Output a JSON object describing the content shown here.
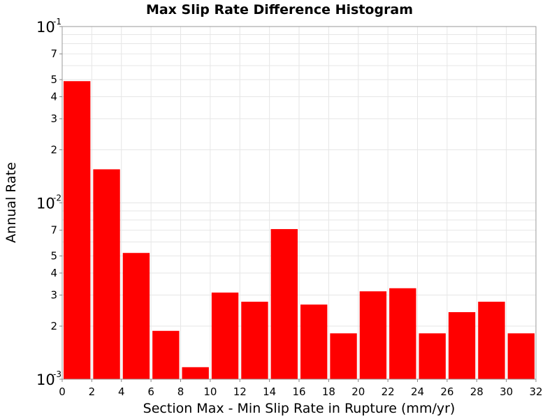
{
  "chart_data": {
    "type": "bar",
    "title": "Max Slip Rate Difference Histogram",
    "xlabel": "Section Max - Min Slip Rate in Rupture (mm/yr)",
    "ylabel": "Annual Rate",
    "y_scale": "log",
    "xlim": [
      0,
      32
    ],
    "ylim": [
      0.001,
      0.1
    ],
    "bar_color": "#ff0000",
    "grid": true,
    "bin_width": 2,
    "x_ticks": [
      "0",
      "2",
      "4",
      "6",
      "8",
      "10",
      "12",
      "14",
      "16",
      "18",
      "20",
      "22",
      "24",
      "26",
      "28",
      "30",
      "32"
    ],
    "y_minor_ticks": [
      {
        "value": 0.002,
        "label": "2"
      },
      {
        "value": 0.003,
        "label": "3"
      },
      {
        "value": 0.004,
        "label": "4"
      },
      {
        "value": 0.005,
        "label": "5"
      },
      {
        "value": 0.007,
        "label": "7"
      },
      {
        "value": 0.02,
        "label": "2"
      },
      {
        "value": 0.03,
        "label": "3"
      },
      {
        "value": 0.04,
        "label": "4"
      },
      {
        "value": 0.05,
        "label": "5"
      },
      {
        "value": 0.07,
        "label": "7"
      }
    ],
    "y_major_ticks": [
      {
        "value": 0.001,
        "base": "10",
        "exp": "-3"
      },
      {
        "value": 0.01,
        "base": "10",
        "exp": "-2"
      },
      {
        "value": 0.1,
        "base": "10",
        "exp": "-1"
      }
    ],
    "bins": [
      {
        "x_start": 0,
        "x_end": 2,
        "value": 0.049
      },
      {
        "x_start": 2,
        "x_end": 4,
        "value": 0.0155
      },
      {
        "x_start": 4,
        "x_end": 6,
        "value": 0.0052
      },
      {
        "x_start": 6,
        "x_end": 8,
        "value": 0.00188
      },
      {
        "x_start": 8,
        "x_end": 10,
        "value": 0.00117
      },
      {
        "x_start": 10,
        "x_end": 12,
        "value": 0.0031
      },
      {
        "x_start": 12,
        "x_end": 14,
        "value": 0.00275
      },
      {
        "x_start": 14,
        "x_end": 16,
        "value": 0.0071
      },
      {
        "x_start": 16,
        "x_end": 18,
        "value": 0.00265
      },
      {
        "x_start": 18,
        "x_end": 20,
        "value": 0.00182
      },
      {
        "x_start": 20,
        "x_end": 22,
        "value": 0.00315
      },
      {
        "x_start": 22,
        "x_end": 24,
        "value": 0.00328
      },
      {
        "x_start": 24,
        "x_end": 26,
        "value": 0.00182
      },
      {
        "x_start": 26,
        "x_end": 28,
        "value": 0.0024
      },
      {
        "x_start": 28,
        "x_end": 30,
        "value": 0.00275
      },
      {
        "x_start": 30,
        "x_end": 32,
        "value": 0.00182
      }
    ]
  }
}
